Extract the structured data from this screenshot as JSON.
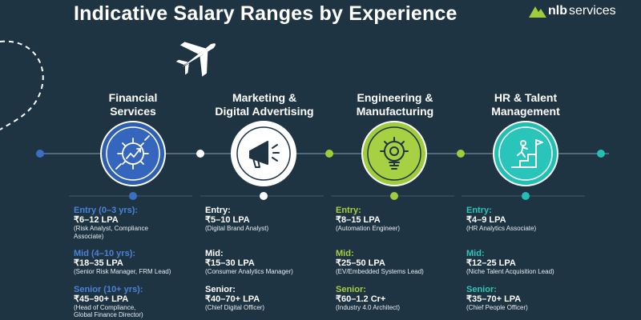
{
  "title": "Indicative Salary Ranges by Experience",
  "brand": {
    "name": "nlb services",
    "prefix": "nlb",
    "suffix": "services"
  },
  "colors": {
    "background": "#1f3443",
    "financial": "#2f5fb1",
    "marketing": "#ffffff",
    "engineering": "#9fcc3b",
    "hr": "#22bfb4"
  },
  "columns": [
    {
      "title": "Financial Services",
      "title_lines": [
        "Financial",
        "Services"
      ],
      "icon": "gear-chart-icon",
      "accent": "#4a82d6",
      "levels": [
        {
          "label": "Entry (0–3 yrs):",
          "range": "₹6–12 LPA",
          "roles": [
            "(Risk Analyst, Compliance",
            "Associate)"
          ]
        },
        {
          "label": "Mid (4–10 yrs):",
          "range": "₹18–35 LPA",
          "roles": [
            "(Senior Risk Manager, FRM Lead)"
          ]
        },
        {
          "label": "Senior (10+ yrs):",
          "range": "₹45–90+ LPA",
          "roles": [
            "(Head of Compliance,",
            "Global Finance Director)"
          ]
        }
      ]
    },
    {
      "title": "Marketing & Digital Advertising",
      "title_lines": [
        "Marketing &",
        "Digital Advertising"
      ],
      "icon": "megaphone-icon",
      "accent": "#ffffff",
      "levels": [
        {
          "label": "Entry:",
          "range": "₹5–10 LPA",
          "roles": [
            "(Digital Brand Analyst)"
          ]
        },
        {
          "label": "Mid:",
          "range": "₹15–30 LPA",
          "roles": [
            "(Consumer Analytics Manager)"
          ]
        },
        {
          "label": "Senior:",
          "range": "₹40–70+ LPA",
          "roles": [
            "(Chief Digital Officer)"
          ]
        }
      ]
    },
    {
      "title": "Engineering & Manufacturing",
      "title_lines": [
        "Engineering &",
        "Manufacturing"
      ],
      "icon": "lightbulb-gear-icon",
      "accent": "#a5cf3f",
      "levels": [
        {
          "label": "Entry:",
          "range": "₹8–15 LPA",
          "roles": [
            "(Automation Engineer)"
          ]
        },
        {
          "label": "Mid:",
          "range": "₹25–50 LPA",
          "roles": [
            "(EV/Embedded Systems Lead)"
          ]
        },
        {
          "label": "Senior:",
          "range": "₹60–1.2 Cr+",
          "roles": [
            "(Industry 4.0 Architect)"
          ]
        }
      ]
    },
    {
      "title": "HR & Talent Management",
      "title_lines": [
        "HR & Talent",
        "Management"
      ],
      "icon": "stairs-flag-icon",
      "accent": "#2ec4b6",
      "levels": [
        {
          "label": "Entry:",
          "range": "₹4–9 LPA",
          "roles": [
            "(HR Analytics Associate)"
          ]
        },
        {
          "label": "Mid:",
          "range": "₹12–25 LPA",
          "roles": [
            "(Niche Talent Acquisition Lead)"
          ]
        },
        {
          "label": "Senior:",
          "range": "₹35–70+ LPA",
          "roles": [
            "(Chief People Officer)"
          ]
        }
      ]
    }
  ]
}
